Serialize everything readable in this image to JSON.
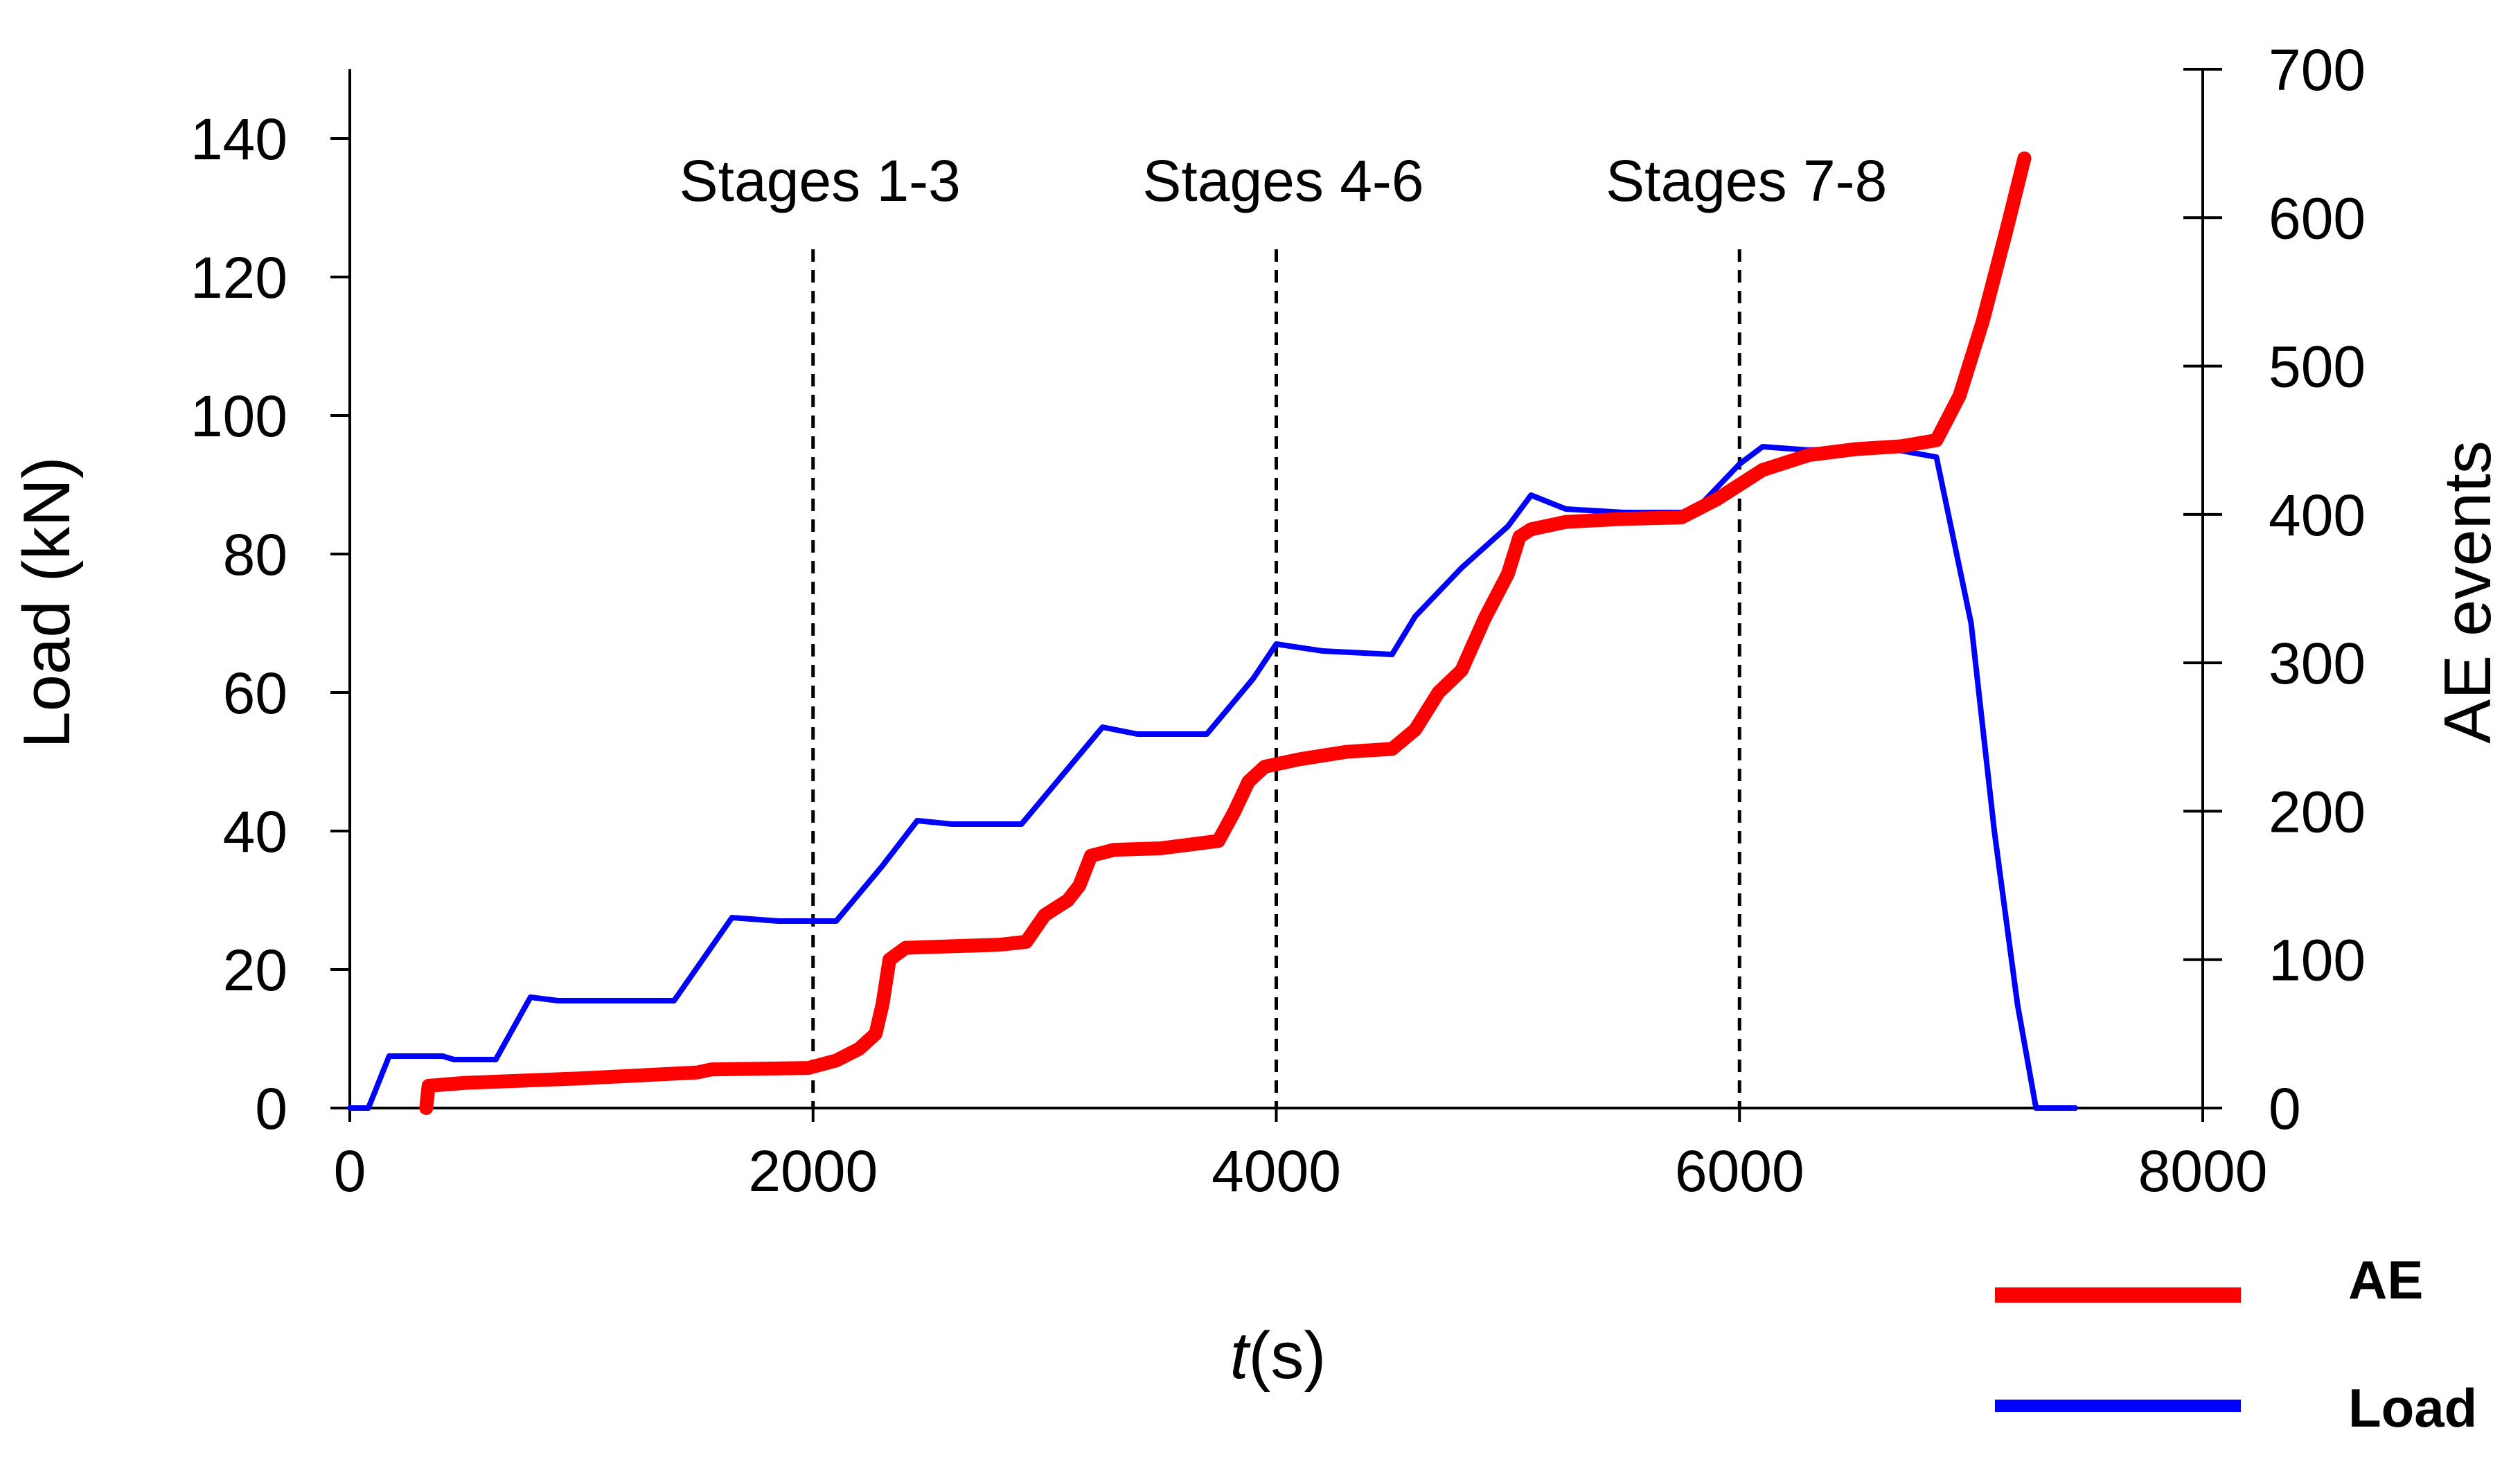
{
  "chart_data": {
    "type": "line",
    "title": "",
    "x_axis": {
      "label_italic": "t",
      "label_rest": "(s)",
      "range": [
        0,
        8000
      ],
      "ticks": [
        0,
        2000,
        4000,
        6000,
        8000
      ],
      "tick_labels": [
        "0",
        "2000",
        "4000",
        "6000",
        "8000"
      ]
    },
    "y_axis_left": {
      "label": "Load (kN)",
      "range": [
        0,
        150
      ],
      "ticks": [
        0,
        20,
        40,
        60,
        80,
        100,
        120,
        140
      ],
      "tick_labels": [
        "0",
        "20",
        "40",
        "60",
        "80",
        "100",
        "120",
        "140"
      ]
    },
    "y_axis_right": {
      "label": "AE events",
      "range": [
        0,
        700
      ],
      "ticks": [
        0,
        100,
        200,
        300,
        400,
        500,
        600,
        700
      ],
      "tick_labels": [
        "0",
        "100",
        "200",
        "300",
        "400",
        "500",
        "600",
        "700"
      ]
    },
    "grid": false,
    "legend_position": "bottom-right",
    "stage_markers": [
      {
        "x": 2000,
        "label": "Stages 1-3"
      },
      {
        "x": 4000,
        "label": "Stages 4-6"
      },
      {
        "x": 6000,
        "label": "Stages 7-8"
      }
    ],
    "series": [
      {
        "name": "AE",
        "axis": "right",
        "color": "#ff0000",
        "points": [
          [
            330,
            0
          ],
          [
            340,
            15
          ],
          [
            500,
            17
          ],
          [
            1000,
            20
          ],
          [
            1500,
            24
          ],
          [
            1560,
            26
          ],
          [
            1980,
            27
          ],
          [
            2100,
            32
          ],
          [
            2200,
            40
          ],
          [
            2270,
            50
          ],
          [
            2300,
            70
          ],
          [
            2330,
            100
          ],
          [
            2400,
            108
          ],
          [
            2600,
            109
          ],
          [
            2800,
            110
          ],
          [
            2920,
            112
          ],
          [
            3000,
            130
          ],
          [
            3100,
            140
          ],
          [
            3150,
            150
          ],
          [
            3200,
            170
          ],
          [
            3300,
            174
          ],
          [
            3500,
            175
          ],
          [
            3750,
            180
          ],
          [
            3820,
            200
          ],
          [
            3880,
            220
          ],
          [
            3950,
            230
          ],
          [
            4100,
            235
          ],
          [
            4300,
            240
          ],
          [
            4500,
            242
          ],
          [
            4600,
            255
          ],
          [
            4700,
            280
          ],
          [
            4800,
            295
          ],
          [
            4900,
            330
          ],
          [
            5000,
            360
          ],
          [
            5050,
            385
          ],
          [
            5100,
            390
          ],
          [
            5250,
            395
          ],
          [
            5500,
            397
          ],
          [
            5750,
            398
          ],
          [
            5900,
            410
          ],
          [
            6100,
            430
          ],
          [
            6300,
            440
          ],
          [
            6500,
            444
          ],
          [
            6700,
            446
          ],
          [
            6850,
            450
          ],
          [
            6950,
            480
          ],
          [
            7050,
            530
          ],
          [
            7150,
            590
          ],
          [
            7230,
            640
          ]
        ]
      },
      {
        "name": "Load",
        "axis": "left",
        "color": "#0000ff",
        "points": [
          [
            0,
            0
          ],
          [
            80,
            0
          ],
          [
            170,
            7.5
          ],
          [
            400,
            7.5
          ],
          [
            450,
            7
          ],
          [
            630,
            7
          ],
          [
            780,
            16
          ],
          [
            900,
            15.5
          ],
          [
            1400,
            15.5
          ],
          [
            1650,
            27.5
          ],
          [
            1850,
            27
          ],
          [
            2100,
            27
          ],
          [
            2300,
            35
          ],
          [
            2450,
            41.5
          ],
          [
            2600,
            41
          ],
          [
            2900,
            41
          ],
          [
            3250,
            55
          ],
          [
            3400,
            54
          ],
          [
            3700,
            54
          ],
          [
            3900,
            62
          ],
          [
            4000,
            67
          ],
          [
            4200,
            66
          ],
          [
            4500,
            65.5
          ],
          [
            4600,
            71
          ],
          [
            4800,
            78
          ],
          [
            5000,
            84
          ],
          [
            5100,
            88.5
          ],
          [
            5250,
            86.5
          ],
          [
            5500,
            86
          ],
          [
            5800,
            86
          ],
          [
            6000,
            93
          ],
          [
            6100,
            95.5
          ],
          [
            6300,
            95
          ],
          [
            6600,
            95.5
          ],
          [
            6850,
            94
          ],
          [
            7000,
            70
          ],
          [
            7100,
            40
          ],
          [
            7200,
            15
          ],
          [
            7280,
            0
          ],
          [
            7450,
            0
          ]
        ]
      }
    ]
  }
}
